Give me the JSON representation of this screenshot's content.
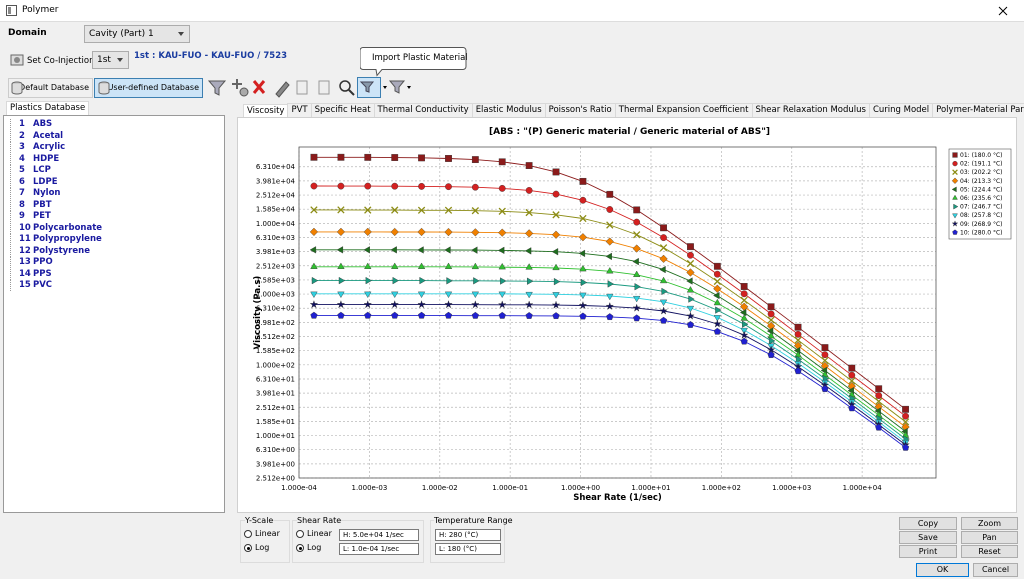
{
  "window": {
    "title": "Polymer"
  },
  "domain": {
    "label": "Domain",
    "value": "Cavity (Part) 1"
  },
  "co_injection": {
    "button": "Set Co-Injection",
    "value": "1st",
    "info": "1st : KAU-FUO - KAU-FUO / 7523"
  },
  "toolbar": {
    "default_db": "Default Database",
    "user_db": "User-defined Database",
    "tooltip": "Import Plastic Material"
  },
  "database": {
    "tab": "Plastics Database",
    "items": [
      {
        "id": "1",
        "name": "ABS"
      },
      {
        "id": "2",
        "name": "Acetal"
      },
      {
        "id": "3",
        "name": "Acrylic"
      },
      {
        "id": "4",
        "name": "HDPE"
      },
      {
        "id": "5",
        "name": "LCP"
      },
      {
        "id": "6",
        "name": "LDPE"
      },
      {
        "id": "7",
        "name": "Nylon"
      },
      {
        "id": "8",
        "name": "PBT"
      },
      {
        "id": "9",
        "name": "PET"
      },
      {
        "id": "10",
        "name": "Polycarbonate"
      },
      {
        "id": "11",
        "name": "Polypropylene"
      },
      {
        "id": "12",
        "name": "Polystyrene"
      },
      {
        "id": "13",
        "name": "PPO"
      },
      {
        "id": "14",
        "name": "PPS"
      },
      {
        "id": "15",
        "name": "PVC"
      }
    ]
  },
  "tabs": [
    "Viscosity",
    "PVT",
    "Specific Heat",
    "Thermal Conductivity",
    "Elastic Modulus",
    "Poisson's Ratio",
    "Thermal Expansion Coefficient",
    "Shear Relaxation Modulus",
    "Curing Model",
    "Polymer-Material Parameters"
  ],
  "active_tab": 0,
  "chart_data": {
    "type": "line",
    "title": "[ABS : \"(P)  Generic material / Generic material of ABS\"]",
    "x_label": "Shear Rate (1/sec)",
    "y_label": "Viscosity (Pa.s)",
    "xscale": "log",
    "yscale": "log",
    "grid": true,
    "xlim": [
      0.0001,
      112000
    ],
    "ylim": [
      2.512,
      120000
    ],
    "xticks": [
      {
        "value": 0.0001,
        "label": "1.000e-04"
      },
      {
        "value": 0.001,
        "label": "1.000e-03"
      },
      {
        "value": 0.01,
        "label": "1.000e-02"
      },
      {
        "value": 0.1,
        "label": "1.000e-01"
      },
      {
        "value": 1,
        "label": "1.000e+00"
      },
      {
        "value": 10,
        "label": "1.000e+01"
      },
      {
        "value": 100,
        "label": "1.000e+02"
      },
      {
        "value": 1000,
        "label": "1.000e+03"
      },
      {
        "value": 10000,
        "label": "1.000e+04"
      }
    ],
    "yticks": [
      {
        "value": 2.512,
        "label": "2.512e+00"
      },
      {
        "value": 3.981,
        "label": "3.981e+00"
      },
      {
        "value": 6.31,
        "label": "6.310e+00"
      },
      {
        "value": 10,
        "label": "1.000e+01"
      },
      {
        "value": 15.85,
        "label": "1.585e+01"
      },
      {
        "value": 25.12,
        "label": "2.512e+01"
      },
      {
        "value": 39.81,
        "label": "3.981e+01"
      },
      {
        "value": 63.1,
        "label": "6.310e+01"
      },
      {
        "value": 100,
        "label": "1.000e+02"
      },
      {
        "value": 158.5,
        "label": "1.585e+02"
      },
      {
        "value": 251.2,
        "label": "2.512e+02"
      },
      {
        "value": 398.1,
        "label": "3.981e+02"
      },
      {
        "value": 631,
        "label": "6.310e+02"
      },
      {
        "value": 1000,
        "label": "1.000e+03"
      },
      {
        "value": 1585,
        "label": "1.585e+03"
      },
      {
        "value": 2512,
        "label": "2.512e+03"
      },
      {
        "value": 3981,
        "label": "3.981e+03"
      },
      {
        "value": 6310,
        "label": "6.310e+03"
      },
      {
        "value": 10000,
        "label": "1.000e+04"
      },
      {
        "value": 15850,
        "label": "1.585e+04"
      },
      {
        "value": 25120,
        "label": "2.512e+04"
      },
      {
        "value": 39810,
        "label": "3.981e+04"
      },
      {
        "value": 63100,
        "label": "6.310e+04"
      }
    ],
    "x": [
      0.000163,
      0.000394,
      0.000948,
      0.00229,
      0.00551,
      0.0133,
      0.032,
      0.0771,
      0.186,
      0.448,
      1.08,
      2.6,
      6.27,
      15.1,
      36.4,
      87.7,
      211,
      509,
      1230,
      2960,
      7130,
      17200,
      41400
    ],
    "series": [
      {
        "name": "01: (180.0 °C)",
        "color": "#8b1a1a",
        "marker": "square",
        "values": [
          85900,
          85900,
          85700,
          85100,
          84300,
          82600,
          79600,
          74100,
          65500,
          53300,
          39200,
          25700,
          15500,
          8650,
          4680,
          2470,
          1280,
          662,
          340,
          175,
          89.7,
          45.9,
          23.5
        ]
      },
      {
        "name": "02: (191.1 °C)",
        "color": "#d42020",
        "marker": "circle",
        "values": [
          33700,
          33600,
          33600,
          33500,
          33300,
          33000,
          32400,
          31200,
          29200,
          25900,
          21200,
          15700,
          10400,
          6280,
          3540,
          1910,
          1010,
          524,
          270,
          139,
          71.4,
          36.7,
          18.8
        ]
      },
      {
        "name": "03: (202.2 °C)",
        "color": "#8c8c14",
        "marker": "x",
        "values": [
          15500,
          15500,
          15400,
          15400,
          15300,
          15300,
          15100,
          14800,
          14200,
          13200,
          11700,
          9460,
          6900,
          4520,
          2700,
          1510,
          817,
          430,
          223,
          115,
          59.2,
          30.4,
          15.6
        ]
      },
      {
        "name": "04: (213.3 °C)",
        "color": "#f08000",
        "marker": "diamond",
        "values": [
          7570,
          7570,
          7570,
          7550,
          7550,
          7520,
          7460,
          7380,
          7210,
          6900,
          6370,
          5530,
          4400,
          3150,
          2020,
          1190,
          662,
          354,
          186,
          96.4,
          49.8,
          25.6,
          13.2
        ]
      },
      {
        "name": "05: (224.4 °C)",
        "color": "#1e6e1e",
        "marker": "triangle-left",
        "values": [
          4220,
          4220,
          4220,
          4220,
          4210,
          4200,
          4180,
          4150,
          4080,
          3970,
          3760,
          3410,
          2880,
          2220,
          1530,
          953,
          548,
          300,
          159,
          83.2,
          43.1,
          22.2,
          11.4
        ]
      },
      {
        "name": "06: (235.6 °C)",
        "color": "#30c030",
        "marker": "triangle-up",
        "values": [
          2430,
          2430,
          2430,
          2430,
          2430,
          2430,
          2420,
          2400,
          2380,
          2340,
          2250,
          2100,
          1870,
          1530,
          1130,
          746,
          451,
          254,
          137,
          72.1,
          37.5,
          19.4,
          10.0
        ]
      },
      {
        "name": "07: (246.7 °C)",
        "color": "#1a9a80",
        "marker": "triangle-right",
        "values": [
          1550,
          1550,
          1550,
          1550,
          1550,
          1540,
          1540,
          1530,
          1520,
          1500,
          1460,
          1390,
          1270,
          1090,
          849,
          594,
          375,
          218,
          120,
          63.8,
          33.4,
          17.3,
          8.93
        ]
      },
      {
        "name": "08: (257.8 °C)",
        "color": "#30d0e0",
        "marker": "triangle-down",
        "values": [
          1010,
          1010,
          1010,
          1010,
          1010,
          1010,
          1010,
          1010,
          1000,
          993,
          975,
          940,
          877,
          778,
          635,
          470,
          310,
          187,
          105,
          56.9,
          30.0,
          15.6,
          8.05
        ]
      },
      {
        "name": "09: (268.9 °C)",
        "color": "#101060",
        "marker": "star",
        "values": [
          710,
          710,
          710,
          710,
          710,
          710,
          708,
          706,
          705,
          698,
          689,
          670,
          634,
          577,
          489,
          378,
          262,
          163,
          94.0,
          51.4,
          27.3,
          14.3,
          7.38
        ]
      },
      {
        "name": "10: (280.0 °C)",
        "color": "#2020d0",
        "marker": "pentagon",
        "values": [
          497,
          497,
          497,
          497,
          497,
          497,
          495,
          495,
          493,
          491,
          485,
          475,
          456,
          422,
          368,
          295,
          214,
          138,
          81.7,
          45.6,
          24.4,
          13.0,
          6.75
        ]
      }
    ]
  },
  "controls": {
    "y_scale": {
      "label": "Y-Scale",
      "options": [
        "Linear",
        "Log"
      ],
      "selected": 1
    },
    "shear_rate": {
      "label": "Shear Rate",
      "options": [
        "Linear",
        "Log"
      ],
      "selected": 1,
      "high": "H: 5.0e+04 1/sec",
      "low": "L: 1.0e-04 1/sec"
    },
    "temperature": {
      "label": "Temperature Range",
      "high": "H: 280 (°C)",
      "low": "L: 180 (°C)"
    }
  },
  "buttons": {
    "copy": "Copy",
    "zoom": "Zoom",
    "save": "Save",
    "pan": "Pan",
    "print": "Print",
    "reset": "Reset",
    "ok": "OK",
    "cancel": "Cancel"
  }
}
